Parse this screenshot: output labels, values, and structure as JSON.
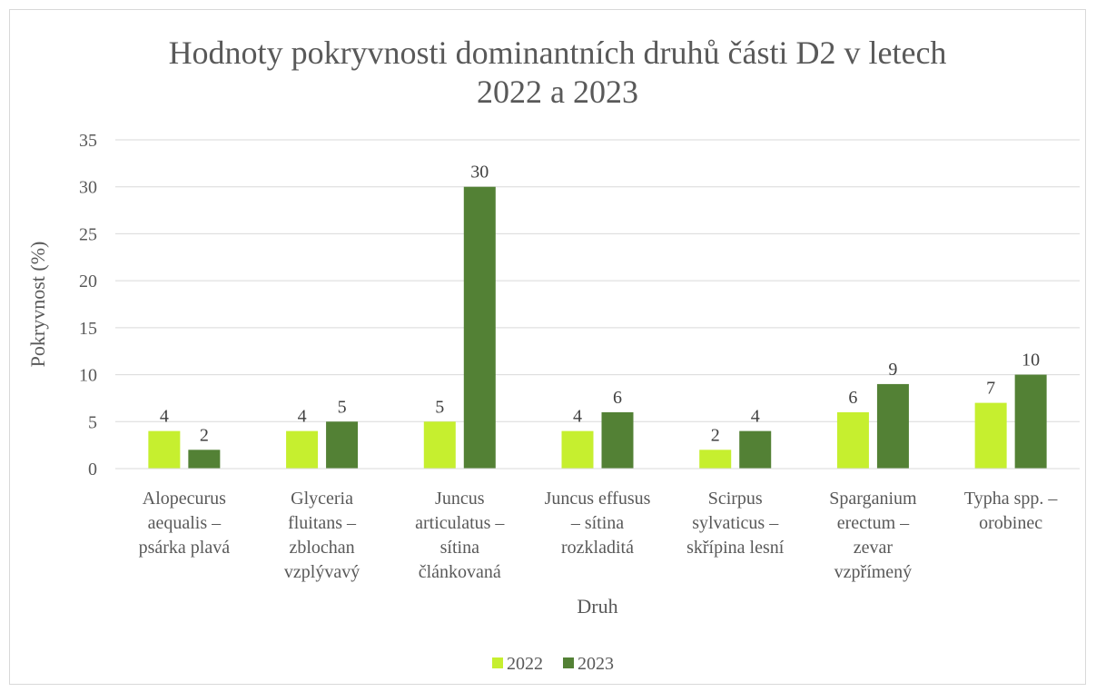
{
  "chart_data": {
    "type": "bar",
    "title_lines": [
      "Hodnoty pokryvnosti dominantních druhů části D2 v letech",
      "2022 a 2023"
    ],
    "xlabel": "Druh",
    "ylabel": "Pokryvnost (%)",
    "ylim": [
      0,
      35
    ],
    "yticks": [
      0,
      5,
      10,
      15,
      20,
      25,
      30,
      35
    ],
    "grid": true,
    "legend_position": "bottom",
    "categories": [
      [
        "Alopecurus",
        "aequalis –",
        "psárka plavá"
      ],
      [
        "Glyceria",
        "fluitans –",
        "zblochan",
        "vzplývavý"
      ],
      [
        "Juncus",
        "articulatus –",
        "sítina",
        "článkovaná"
      ],
      [
        "Juncus effusus",
        "– sítina",
        "rozkladitá"
      ],
      [
        "Scirpus",
        "sylvaticus –",
        "skřípina lesní"
      ],
      [
        "Sparganium",
        "erectum –",
        "zevar",
        "vzpřímený"
      ],
      [
        "Typha spp. –",
        "orobinec"
      ]
    ],
    "series": [
      {
        "name": "2022",
        "color": "#c6ef2f",
        "values": [
          4,
          4,
          5,
          4,
          2,
          6,
          7
        ]
      },
      {
        "name": "2023",
        "color": "#538135",
        "values": [
          2,
          5,
          30,
          6,
          4,
          9,
          10
        ]
      }
    ]
  }
}
